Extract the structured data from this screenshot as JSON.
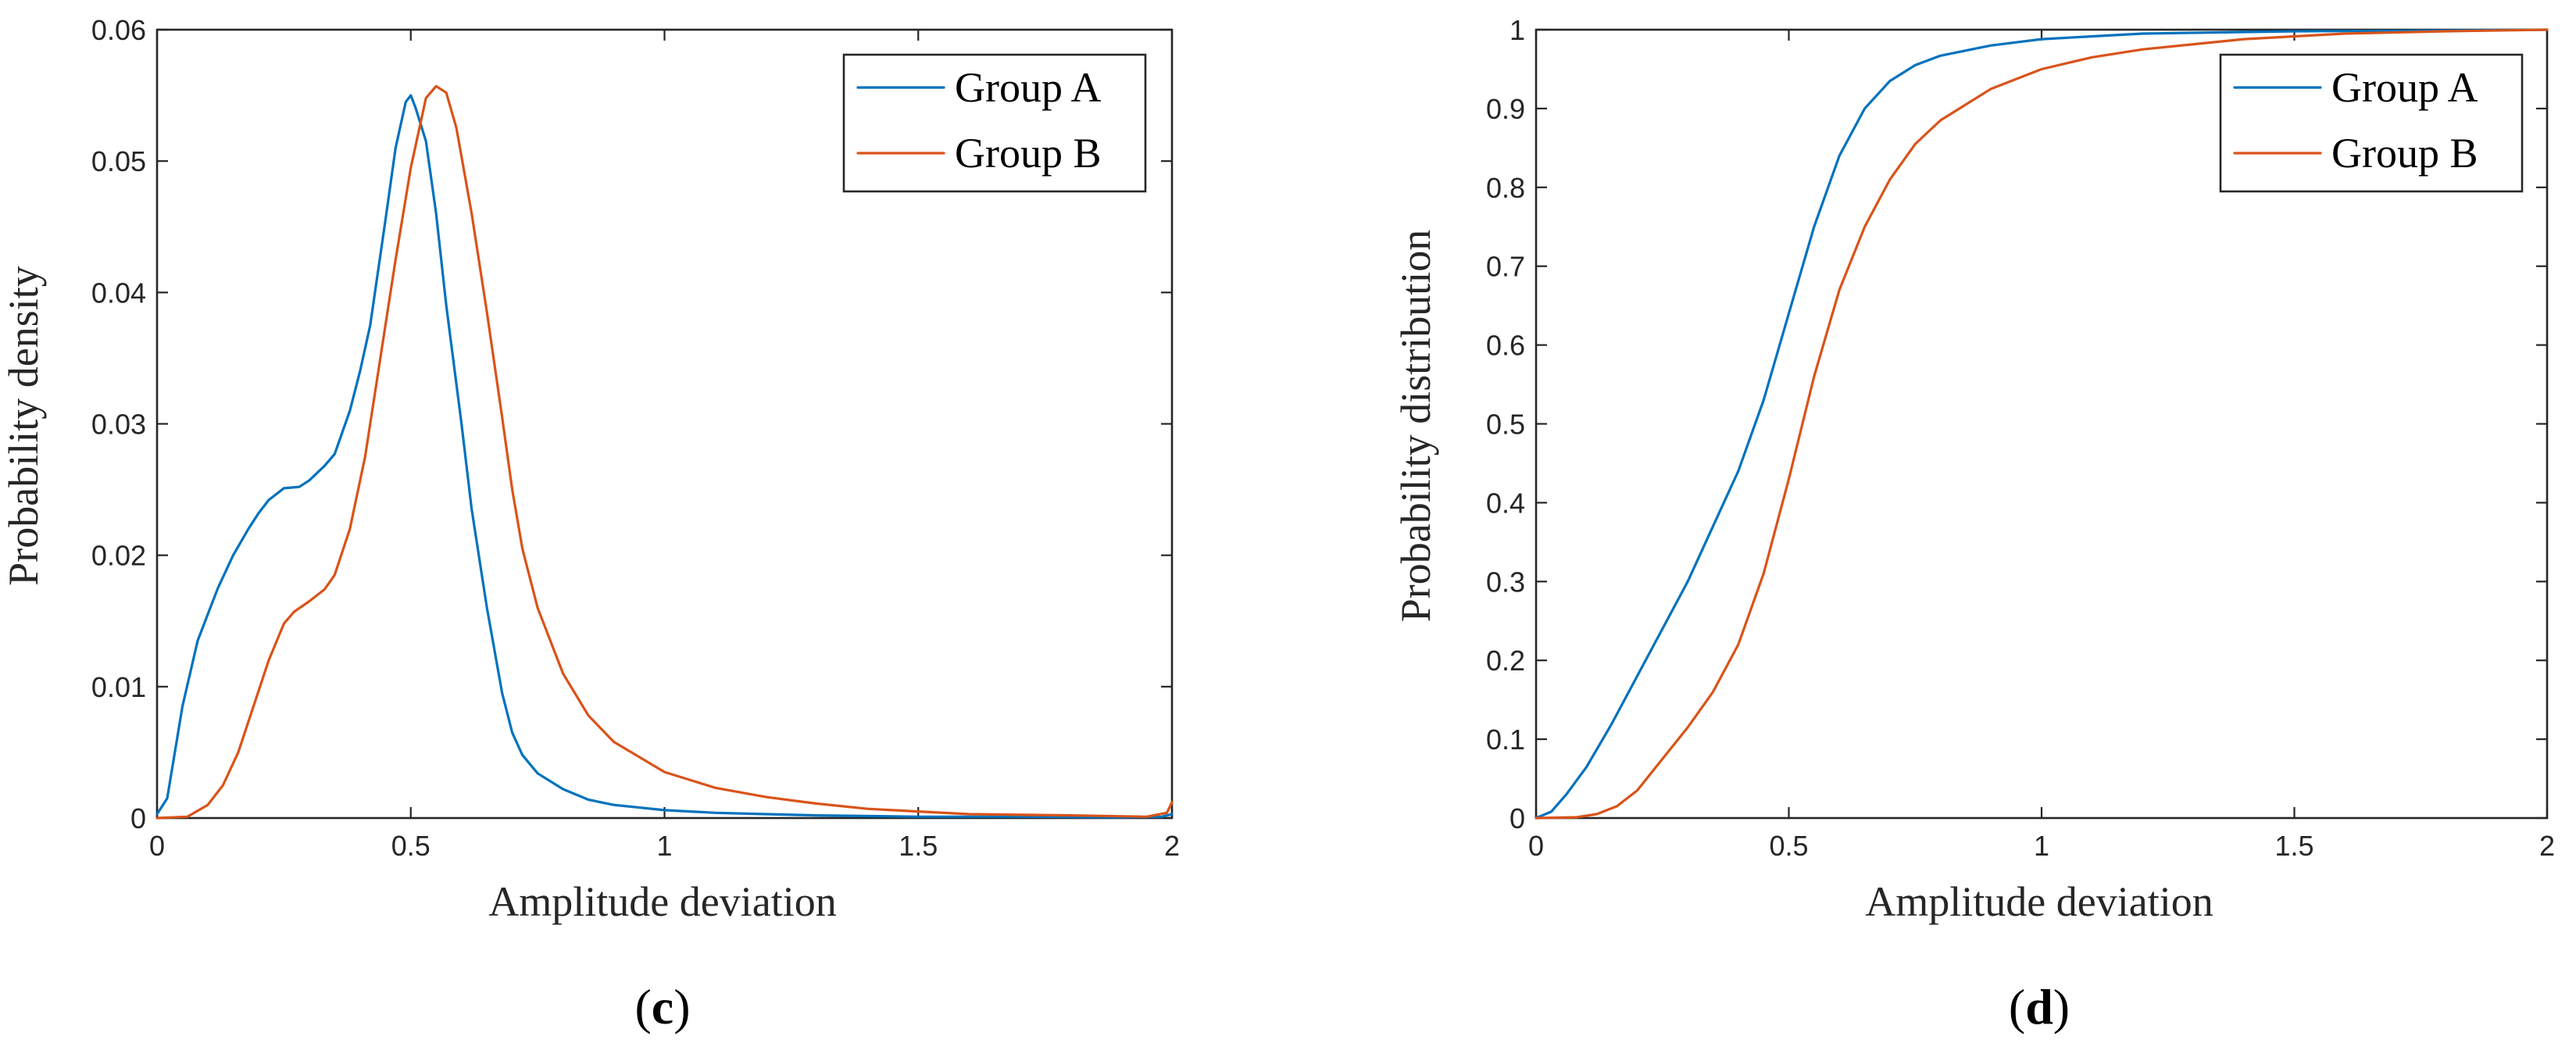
{
  "chart_data": [
    {
      "type": "line",
      "panel_label_open": "(",
      "panel_label_letter": "c",
      "panel_label_close": ")",
      "xlabel": "Amplitude deviation",
      "ylabel": "Probability density",
      "xlim": [
        0,
        2
      ],
      "ylim": [
        0,
        0.06
      ],
      "xticks": [
        0,
        0.5,
        1,
        1.5,
        2
      ],
      "xtick_labels": [
        "0",
        "0.5",
        "1",
        "1.5",
        "2"
      ],
      "yticks": [
        0,
        0.01,
        0.02,
        0.03,
        0.04,
        0.05,
        0.06
      ],
      "ytick_labels": [
        "0",
        "0.01",
        "0.02",
        "0.03",
        "0.04",
        "0.05",
        "0.06"
      ],
      "legend_position": "top-right",
      "series": [
        {
          "name": "Group A",
          "color": "#0072BD",
          "x": [
            0,
            0.02,
            0.05,
            0.08,
            0.1,
            0.12,
            0.15,
            0.18,
            0.2,
            0.22,
            0.25,
            0.28,
            0.3,
            0.33,
            0.35,
            0.38,
            0.4,
            0.42,
            0.45,
            0.47,
            0.49,
            0.5,
            0.51,
            0.53,
            0.55,
            0.57,
            0.6,
            0.62,
            0.65,
            0.68,
            0.7,
            0.72,
            0.75,
            0.8,
            0.85,
            0.9,
            1,
            1.1,
            1.2,
            1.3,
            1.5,
            1.7,
            1.9,
            1.98,
            2
          ],
          "y": [
            0.0003,
            0.0015,
            0.0085,
            0.0135,
            0.0155,
            0.0175,
            0.02,
            0.022,
            0.0232,
            0.0242,
            0.0251,
            0.0252,
            0.0257,
            0.0268,
            0.0277,
            0.031,
            0.034,
            0.0375,
            0.0455,
            0.051,
            0.0545,
            0.055,
            0.054,
            0.0515,
            0.046,
            0.039,
            0.03,
            0.0235,
            0.016,
            0.0095,
            0.0065,
            0.0048,
            0.0034,
            0.0022,
            0.0014,
            0.001,
            0.0006,
            0.0004,
            0.0003,
            0.0002,
            0.0001,
            0.0001,
            5e-05,
            0.0001,
            0.0003
          ]
        },
        {
          "name": "Group B",
          "color": "#D95319",
          "x": [
            0,
            0.06,
            0.1,
            0.13,
            0.16,
            0.19,
            0.22,
            0.25,
            0.27,
            0.3,
            0.33,
            0.35,
            0.38,
            0.41,
            0.44,
            0.47,
            0.5,
            0.53,
            0.55,
            0.57,
            0.59,
            0.62,
            0.65,
            0.68,
            0.7,
            0.72,
            0.75,
            0.8,
            0.85,
            0.9,
            1,
            1.1,
            1.2,
            1.3,
            1.4,
            1.5,
            1.6,
            1.8,
            1.95,
            1.99,
            2
          ],
          "y": [
            0,
            0.0001,
            0.001,
            0.0025,
            0.005,
            0.0085,
            0.012,
            0.0148,
            0.0157,
            0.0165,
            0.0174,
            0.0185,
            0.022,
            0.0275,
            0.035,
            0.0425,
            0.0495,
            0.0548,
            0.0557,
            0.0552,
            0.0525,
            0.046,
            0.0385,
            0.0305,
            0.025,
            0.0205,
            0.016,
            0.011,
            0.0078,
            0.0058,
            0.0035,
            0.0023,
            0.0016,
            0.0011,
            0.0007,
            0.0005,
            0.0003,
            0.0002,
            0.0001,
            0.0004,
            0.0012
          ]
        }
      ]
    },
    {
      "type": "line",
      "panel_label_open": "(",
      "panel_label_letter": "d",
      "panel_label_close": ")",
      "xlabel": "Amplitude deviation",
      "ylabel": "Probability distribution",
      "xlim": [
        0,
        2
      ],
      "ylim": [
        0,
        1
      ],
      "xticks": [
        0,
        0.5,
        1,
        1.5,
        2
      ],
      "xtick_labels": [
        "0",
        "0.5",
        "1",
        "1.5",
        "2"
      ],
      "yticks": [
        0,
        0.1,
        0.2,
        0.3,
        0.4,
        0.5,
        0.6,
        0.7,
        0.8,
        0.9,
        1
      ],
      "ytick_labels": [
        "0",
        "0.1",
        "0.2",
        "0.3",
        "0.4",
        "0.5",
        "0.6",
        "0.7",
        "0.8",
        "0.9",
        "1"
      ],
      "legend_position": "top-right",
      "series": [
        {
          "name": "Group A",
          "color": "#0072BD",
          "x": [
            0,
            0.03,
            0.06,
            0.1,
            0.15,
            0.2,
            0.25,
            0.3,
            0.35,
            0.4,
            0.45,
            0.5,
            0.55,
            0.6,
            0.65,
            0.7,
            0.75,
            0.8,
            0.9,
            1,
            1.2,
            1.5,
            1.8,
            2
          ],
          "y": [
            0,
            0.008,
            0.03,
            0.065,
            0.12,
            0.18,
            0.24,
            0.3,
            0.37,
            0.44,
            0.53,
            0.64,
            0.75,
            0.84,
            0.9,
            0.935,
            0.955,
            0.967,
            0.98,
            0.988,
            0.995,
            0.998,
            0.999,
            1
          ]
        },
        {
          "name": "Group B",
          "color": "#D95319",
          "x": [
            0,
            0.08,
            0.12,
            0.16,
            0.2,
            0.25,
            0.3,
            0.35,
            0.4,
            0.45,
            0.5,
            0.55,
            0.6,
            0.65,
            0.7,
            0.75,
            0.8,
            0.85,
            0.9,
            1,
            1.1,
            1.2,
            1.4,
            1.6,
            1.8,
            2
          ],
          "y": [
            0,
            0.001,
            0.005,
            0.015,
            0.035,
            0.075,
            0.115,
            0.16,
            0.22,
            0.31,
            0.43,
            0.56,
            0.67,
            0.75,
            0.81,
            0.855,
            0.885,
            0.905,
            0.925,
            0.95,
            0.965,
            0.975,
            0.988,
            0.995,
            0.998,
            1
          ]
        }
      ]
    }
  ]
}
